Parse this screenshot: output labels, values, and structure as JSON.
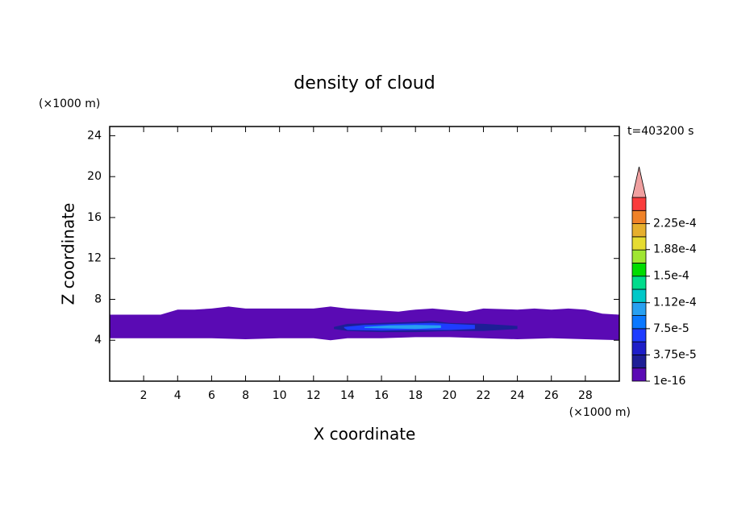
{
  "chart_data": {
    "type": "contour",
    "title": "density of cloud",
    "x_label": "X coordinate",
    "y_label": "Z coordinate",
    "x_unit": "(×1000 m)",
    "y_unit": "(×1000 m)",
    "time_label": "t=403200 s",
    "xlim": [
      0,
      30
    ],
    "ylim": [
      0,
      24.9
    ],
    "xticks": [
      2,
      4,
      6,
      8,
      10,
      12,
      14,
      16,
      18,
      20,
      22,
      24,
      26,
      28
    ],
    "yticks": [
      4,
      8,
      12,
      16,
      20,
      24
    ],
    "regions": [
      {
        "color": "#5a0ab4",
        "x": [
          0,
          0,
          3,
          4,
          5,
          6,
          7,
          8,
          12,
          13,
          14,
          16,
          17,
          18,
          19,
          21,
          22,
          24,
          25,
          26,
          27,
          28,
          29,
          30,
          30,
          28,
          26,
          24,
          22,
          20,
          18,
          16,
          14,
          13,
          12,
          10,
          8,
          6,
          4,
          2,
          0
        ],
        "z": [
          4.2,
          6.5,
          6.5,
          7.0,
          7.0,
          7.1,
          7.3,
          7.1,
          7.1,
          7.3,
          7.1,
          6.9,
          6.8,
          7.0,
          7.1,
          6.8,
          7.1,
          7.0,
          7.1,
          7.0,
          7.1,
          7.0,
          6.6,
          6.5,
          4.0,
          4.1,
          4.2,
          4.1,
          4.2,
          4.3,
          4.3,
          4.2,
          4.2,
          4.0,
          4.2,
          4.2,
          4.1,
          4.2,
          4.2,
          4.2,
          4.2
        ]
      },
      {
        "color": "#1e1e96",
        "x": [
          13.2,
          14,
          16,
          18,
          19,
          20,
          22,
          24,
          24,
          22,
          20,
          18,
          16,
          14,
          13.2
        ],
        "z": [
          5.3,
          5.6,
          5.7,
          5.8,
          5.9,
          5.7,
          5.6,
          5.4,
          5.1,
          4.9,
          4.9,
          4.8,
          4.8,
          4.9,
          5.1
        ]
      },
      {
        "color": "#1e3cff",
        "x": [
          13.8,
          15,
          17,
          19,
          20,
          21.5,
          21.5,
          20,
          18,
          16,
          14,
          13.8
        ],
        "z": [
          5.3,
          5.5,
          5.6,
          5.7,
          5.6,
          5.5,
          5.1,
          5.0,
          5.0,
          4.95,
          5.0,
          5.2
        ]
      },
      {
        "color": "#28a0f0",
        "x": [
          15,
          16.5,
          18,
          19.5,
          19.5,
          18,
          16.5,
          15
        ],
        "z": [
          5.3,
          5.45,
          5.5,
          5.45,
          5.2,
          5.1,
          5.15,
          5.2
        ]
      }
    ],
    "colorbar": {
      "clim": [
        1e-16,
        0.0002625
      ],
      "colors": [
        "#5a0ab4",
        "#1e1e96",
        "#1e1ec8",
        "#1e3cff",
        "#0a78ff",
        "#28a0f0",
        "#00c8c8",
        "#00dc8c",
        "#00dc00",
        "#a0e632",
        "#e6dc32",
        "#e6af2d",
        "#f08228",
        "#fa3c3c"
      ],
      "over_color": "#f0a0a0",
      "ticks": [
        1e-16,
        {
          "value": 3.75e-05,
          "label": "3.75e-5"
        },
        {
          "value": 7.5e-05,
          "label": "7.5e-5"
        },
        {
          "value": 0.000112,
          "label": "1.12e-4"
        },
        {
          "value": 0.00015,
          "label": "1.5e-4"
        },
        {
          "value": 0.000188,
          "label": "1.88e-4"
        },
        {
          "value": 0.000225,
          "label": "2.25e-4"
        }
      ]
    }
  }
}
